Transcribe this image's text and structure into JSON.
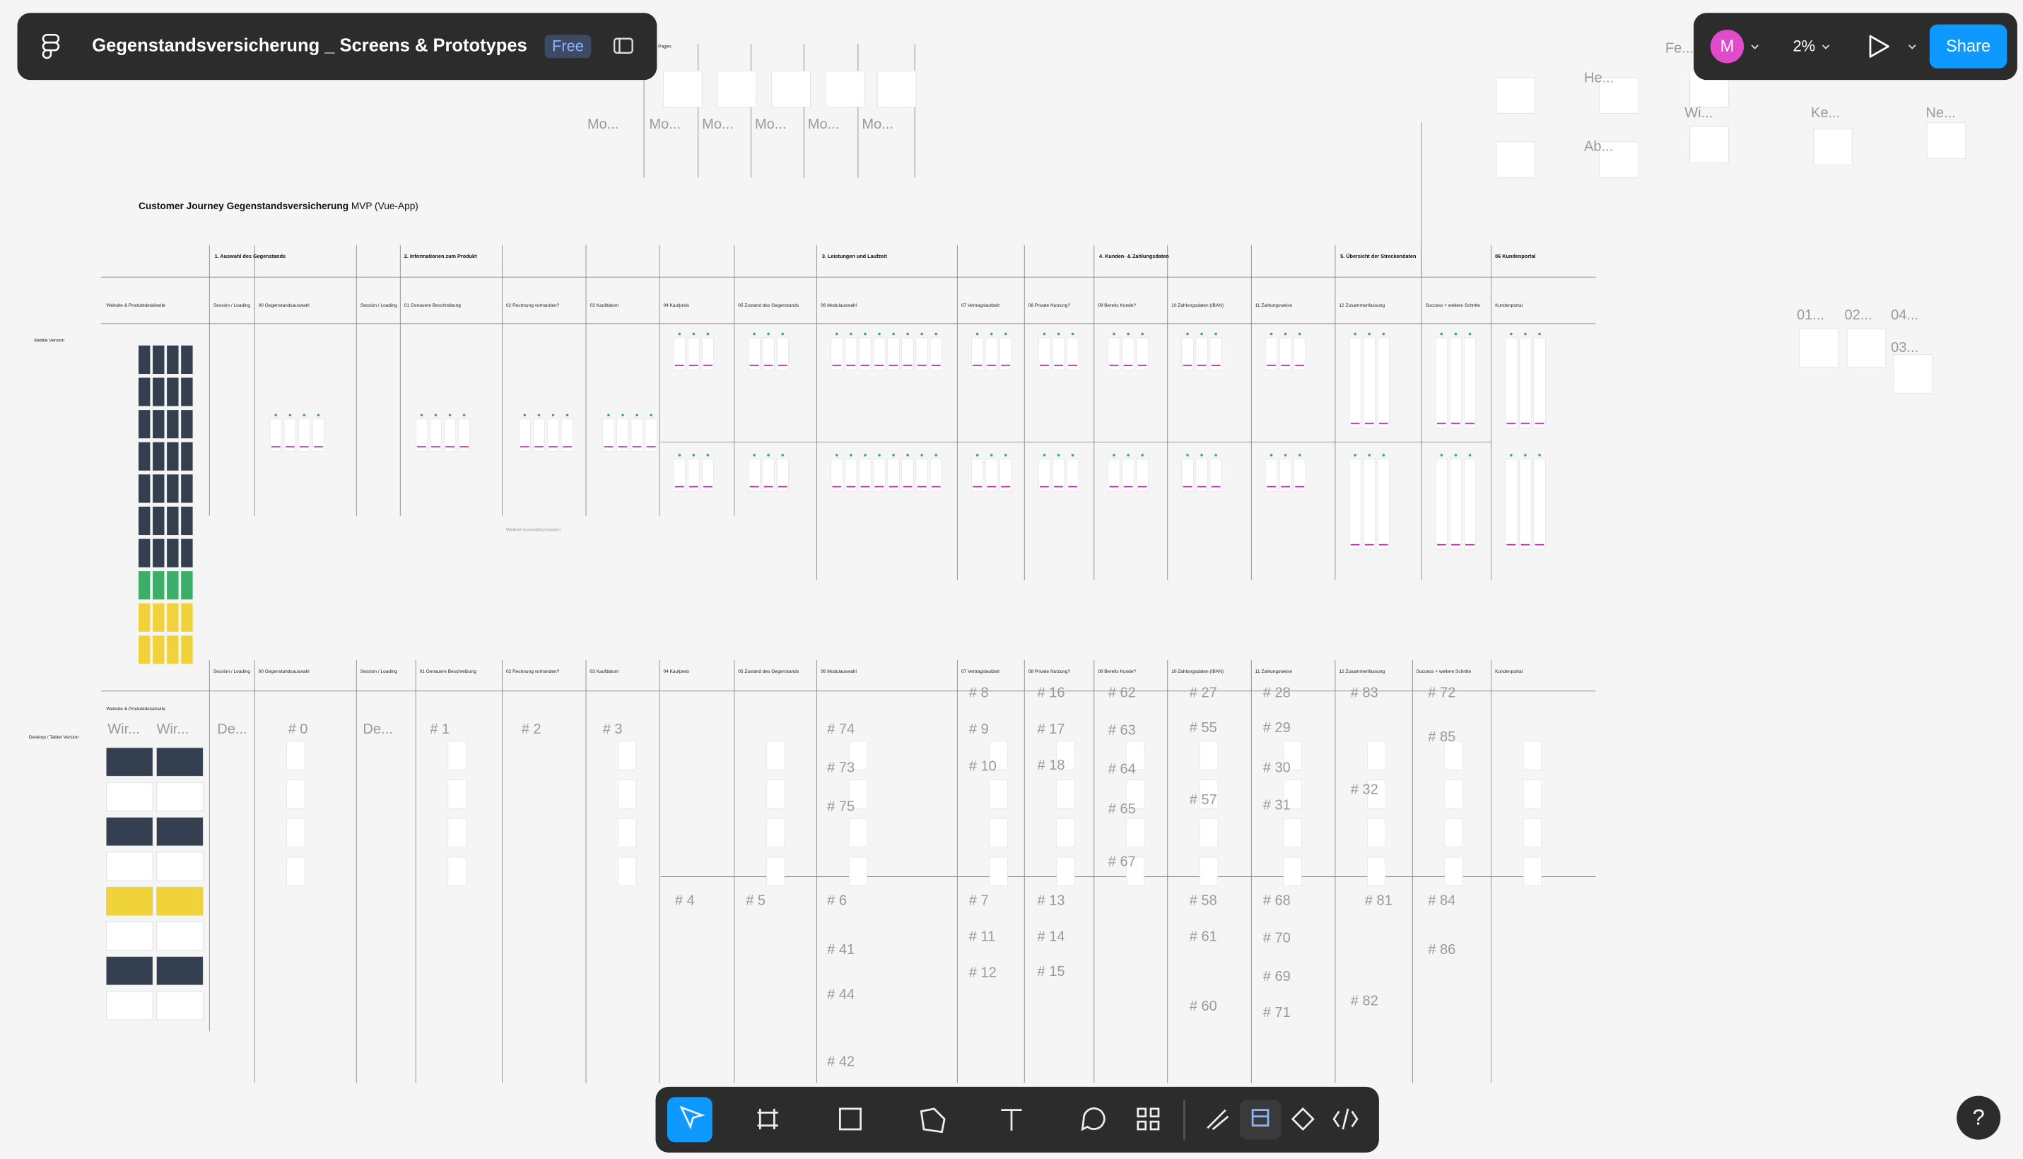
{
  "toolbar": {
    "file_title": "Gegenstandsversicherung _ Screens & Prototypes",
    "plan_badge": "Free",
    "avatar_initial": "M",
    "zoom": "2%",
    "share": "Share"
  },
  "canvas": {
    "pages_label": "Pages",
    "journey_title": "Customer Journey Gegenstandsversicherung",
    "journey_subtitle": "MVP (Vue-App)",
    "sections": [
      "1. Auswahl des Gegenstands",
      "2. Informationen zum Produkt",
      "3. Leistungen und Laufzeit",
      "4. Kunden- & Zahlungsdaten",
      "5. Übersicht der Streckendaten",
      "06 Kundenportal"
    ],
    "row_labels": [
      "Mobile Version",
      "Desktop / Tablet Version"
    ],
    "mobile_columns": [
      "Website & Produktdetailseite",
      "Session / Loading",
      "00 Gegenstandsauswahl",
      "Session / Loading",
      "01 Genauere Beschreibung",
      "02 Rechnung vorhanden?",
      "03 Kaufdatum",
      "04 Kaufpreis",
      "05 Zustand des Gegenstands",
      "06 Modulauswahl",
      "07 Vertragslaufzeit",
      "08 Private Nutzung?",
      "09 Bereits Kunde?",
      "10 Zahlungsdaten (IBAN)",
      "11 Zahlungsweise",
      "12 Zusammenfassung",
      "Success + weitere Schritte",
      "Kundenportal"
    ],
    "desktop_columns": [
      "Website & Produktdetailseite",
      "Session / Loading",
      "00 Gegenstandsauswahl",
      "Session / Loading",
      "01 Genauere Beschreibung",
      "02 Rechnung vorhanden?",
      "03 Kaufdatum",
      "04 Kaufpreis",
      "05 Zustand des Gegenstands",
      "06 Modulauswahl",
      "07 Vertragslaufzeit",
      "08 Private Nutzung?",
      "09 Bereits Kunde?",
      "10 Zahlungsdaten (IBAN)",
      "11 Zahlungsweise",
      "12 Zusammenfassung",
      "Success + weitere Schritte",
      "Kundenportal"
    ],
    "extra_label": "Weitere Auswahlszenarien",
    "frame_labels": [
      "Mo...",
      "Mo...",
      "Mo...",
      "Mo...",
      "Mo...",
      "Mo...",
      "He...",
      "Fe...",
      "Wi...",
      "Ab...",
      "Ke...",
      "Ne...",
      "01...",
      "02...",
      "04...",
      "03...",
      "De...",
      "De...",
      "Wir...",
      "Wir...",
      "# 8",
      "# 16",
      "# 62",
      "# 27",
      "# 28",
      "# 83",
      "# 72",
      "# 0",
      "# 1",
      "# 2",
      "# 3",
      "# 74",
      "# 9",
      "# 17",
      "# 63",
      "# 55",
      "# 29",
      "# 85",
      "# 73",
      "# 10",
      "# 18",
      "# 64",
      "# 30",
      "# 75",
      "# 65",
      "# 57",
      "# 31",
      "# 32",
      "# 67",
      "# 4",
      "# 5",
      "# 6",
      "# 7",
      "# 13",
      "# 58",
      "# 68",
      "# 81",
      "# 84",
      "# 11",
      "# 14",
      "# 61",
      "# 70",
      "# 86",
      "# 41",
      "# 12",
      "# 15",
      "# 69",
      "# 44",
      "# 60",
      "# 71",
      "# 82",
      "# 42"
    ]
  },
  "help": "?"
}
